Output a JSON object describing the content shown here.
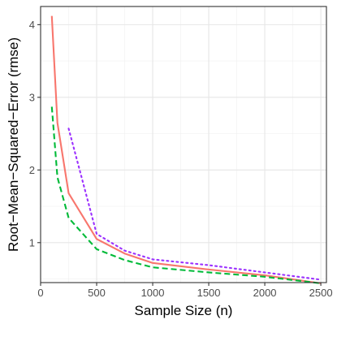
{
  "chart_data": {
    "type": "line",
    "title": "",
    "xlabel": "Sample Size (n)",
    "ylabel": "Root−Mean−Squared−Error (rmse)",
    "xlim": [
      0,
      2550
    ],
    "ylim": [
      0.45,
      4.25
    ],
    "xticks": [
      0,
      500,
      1000,
      1500,
      2000,
      2500
    ],
    "yticks": [
      1,
      2,
      3,
      4
    ],
    "grid": true,
    "legend": "none",
    "series": [
      {
        "color": "#F8766D",
        "dash": "solid",
        "x": [
          100,
          150,
          250,
          500,
          750,
          1000,
          1500,
          2000,
          2500
        ],
        "y": [
          4.12,
          2.65,
          1.68,
          1.05,
          0.85,
          0.72,
          0.63,
          0.55,
          0.44
        ]
      },
      {
        "color": "#00BA38",
        "dash": "dashed",
        "x": [
          100,
          150,
          250,
          500,
          750,
          1000,
          1500,
          2000,
          2500
        ],
        "y": [
          2.87,
          1.9,
          1.34,
          0.91,
          0.76,
          0.66,
          0.59,
          0.53,
          0.44
        ]
      },
      {
        "color": "#9B30FF",
        "dash": "dotted",
        "x": [
          250,
          500,
          750,
          1000,
          1500,
          2000,
          2500
        ],
        "y": [
          2.57,
          1.12,
          0.89,
          0.77,
          0.69,
          0.59,
          0.49
        ]
      }
    ]
  }
}
